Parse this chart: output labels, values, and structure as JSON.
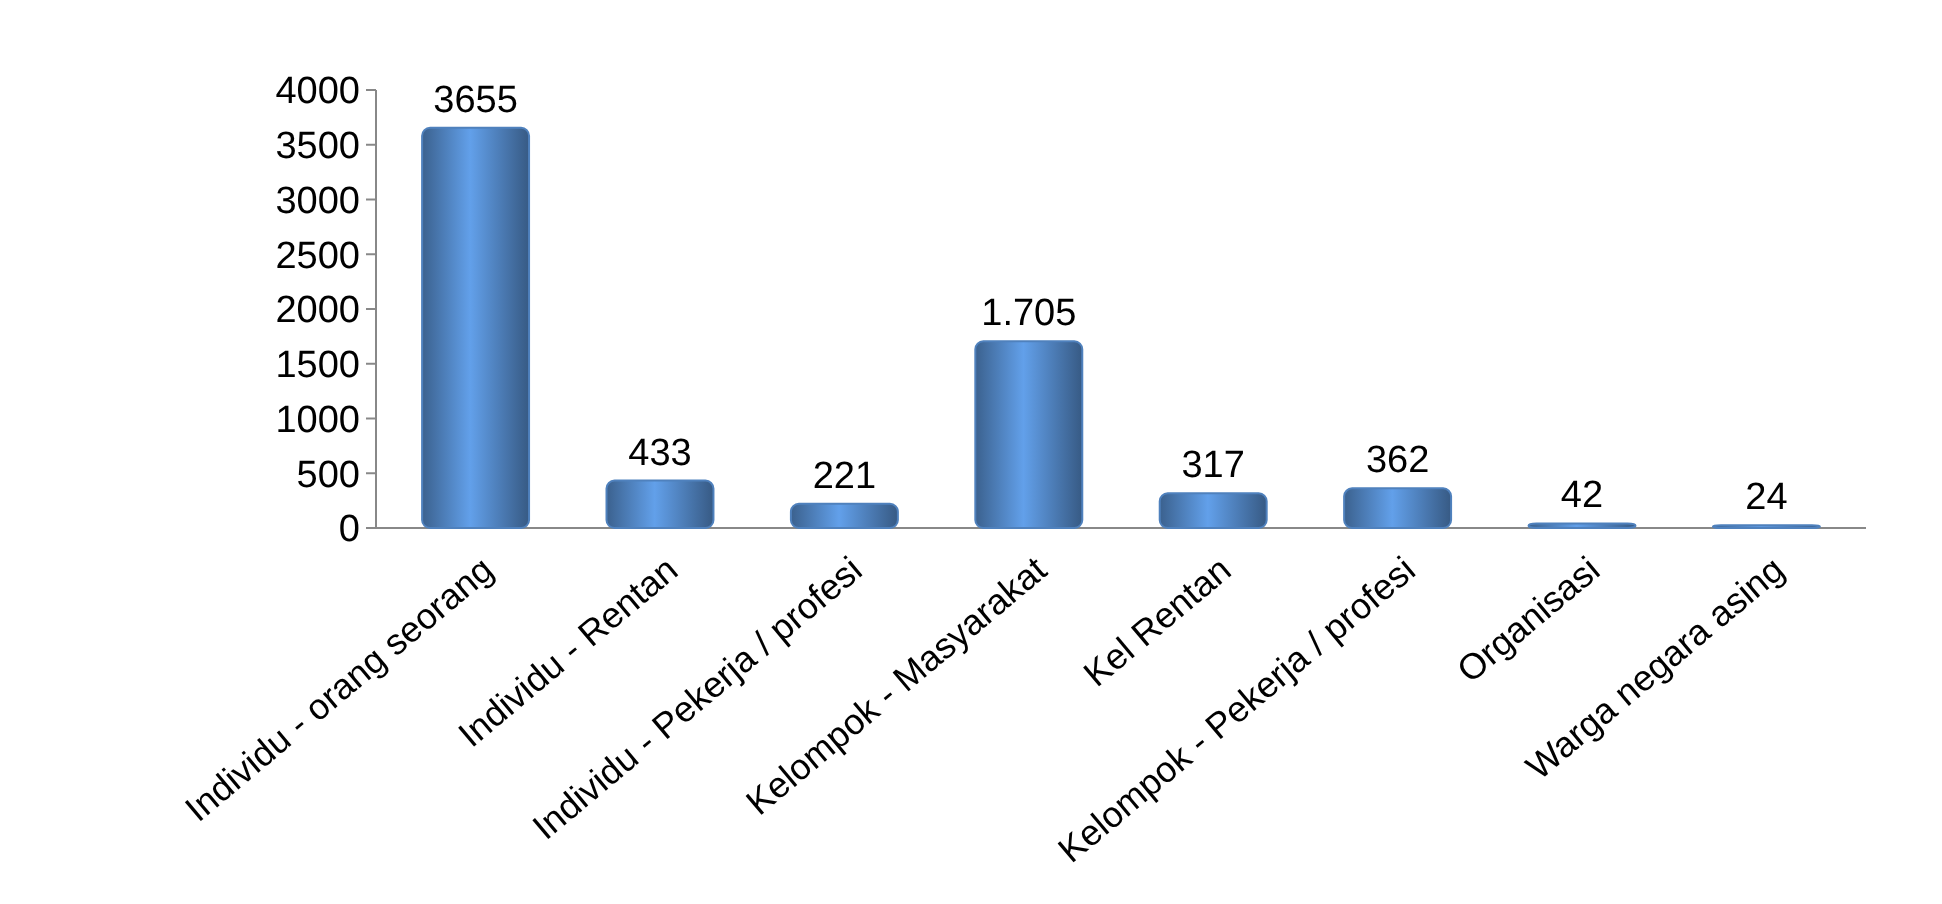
{
  "chart_data": {
    "type": "bar",
    "categories": [
      "Individu - orang seorang",
      "Individu - Rentan",
      "Individu - Pekerja / profesi",
      "Kelompok - Masyarakat",
      "Kel Rentan",
      "Kelompok - Pekerja / profesi",
      "Organisasi",
      "Warga negara asing"
    ],
    "values": [
      3655,
      433,
      221,
      1705,
      317,
      362,
      42,
      24
    ],
    "value_labels": [
      "3655",
      "433",
      "221",
      "1.705",
      "317",
      "362",
      "42",
      "24"
    ],
    "color": "#4f81bd",
    "ylim": [
      0,
      4000
    ],
    "yticks": [
      0,
      500,
      1000,
      1500,
      2000,
      2500,
      3000,
      3500,
      4000
    ],
    "grid": false
  }
}
